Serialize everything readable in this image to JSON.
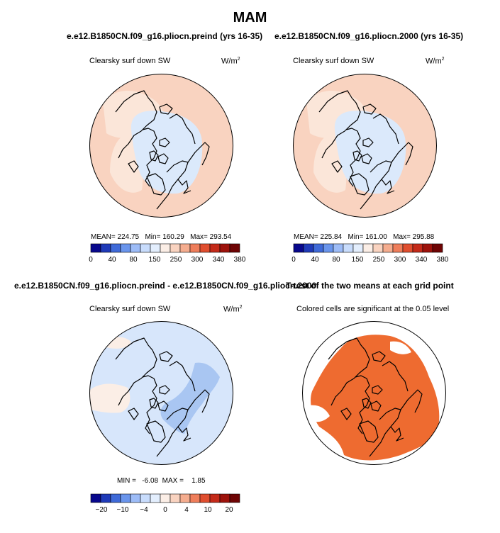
{
  "figure_title": "MAM",
  "chart_data": [
    {
      "type": "heatmap",
      "projection": "north-polar-stereographic",
      "run_title": "e.e12.B1850CN.f09_g16.pliocn.preind (yrs 16-35)",
      "left_label": "Clearsky surf down SW",
      "units_base": "W/m",
      "units_exp": "2",
      "stats": {
        "mean_label": "MEAN=",
        "mean": "224.75",
        "min_label": "Min=",
        "min": "160.29",
        "max_label": "Max=",
        "max": "293.54"
      },
      "colorbar": {
        "levels": [
          0,
          20,
          40,
          60,
          80,
          100,
          150,
          200,
          250,
          275,
          300,
          320,
          340,
          360,
          380
        ],
        "tick_labels": [
          "0",
          "40",
          "80",
          "150",
          "250",
          "300",
          "340",
          "380"
        ],
        "colors": [
          "#08088c",
          "#1f3ab8",
          "#3f6ad8",
          "#6a95ec",
          "#9dbcf7",
          "#c8dcfc",
          "#e3eefd",
          "#fbeee6",
          "#f9d3c0",
          "#f5ad8f",
          "#ef7e5b",
          "#e04e2f",
          "#c42a19",
          "#9d120b",
          "#6e0404"
        ]
      },
      "regions": [
        {
          "name": "central-arctic",
          "value_range": [
            150,
            250
          ],
          "color": "#dbe9fb"
        },
        {
          "name": "high-latitude-land",
          "value_range": [
            250,
            275
          ],
          "color": "#fbe6d9"
        },
        {
          "name": "mid-latitude-ring",
          "value_range": [
            275,
            300
          ],
          "color": "#f9d3c0"
        }
      ]
    },
    {
      "type": "heatmap",
      "projection": "north-polar-stereographic",
      "run_title": "e.e12.B1850CN.f09_g16.pliocn.2000 (yrs 16-35)",
      "left_label": "Clearsky surf down SW",
      "units_base": "W/m",
      "units_exp": "2",
      "stats": {
        "mean_label": "MEAN=",
        "mean": "225.84",
        "min_label": "Min=",
        "min": "161.00",
        "max_label": "Max=",
        "max": "295.88"
      },
      "colorbar": {
        "levels": [
          0,
          20,
          40,
          60,
          80,
          100,
          150,
          200,
          250,
          275,
          300,
          320,
          340,
          360,
          380
        ],
        "tick_labels": [
          "0",
          "40",
          "80",
          "150",
          "250",
          "300",
          "340",
          "380"
        ],
        "colors": [
          "#08088c",
          "#1f3ab8",
          "#3f6ad8",
          "#6a95ec",
          "#9dbcf7",
          "#c8dcfc",
          "#e3eefd",
          "#fbeee6",
          "#f9d3c0",
          "#f5ad8f",
          "#ef7e5b",
          "#e04e2f",
          "#c42a19",
          "#9d120b",
          "#6e0404"
        ]
      },
      "regions": [
        {
          "name": "central-arctic",
          "value_range": [
            150,
            250
          ],
          "color": "#dbe9fb"
        },
        {
          "name": "high-latitude-land",
          "value_range": [
            250,
            275
          ],
          "color": "#fbe6d9"
        },
        {
          "name": "mid-latitude-ring",
          "value_range": [
            275,
            300
          ],
          "color": "#f9d3c0"
        }
      ]
    },
    {
      "type": "heatmap",
      "projection": "north-polar-stereographic",
      "run_title": "e.e12.B1850CN.f09_g16.pliocn.preind - e.e12.B1850CN.f09_g16.pliocn.2000",
      "left_label": "Clearsky surf down SW",
      "units_base": "W/m",
      "units_exp": "2",
      "stats": {
        "min_label": "MIN =",
        "min": "-6.08",
        "max_label": "MAX =",
        "max": "1.85"
      },
      "colorbar": {
        "levels": [
          -30,
          -20,
          -15,
          -10,
          -6,
          -4,
          -2,
          0,
          2,
          4,
          6,
          10,
          15,
          20,
          30
        ],
        "tick_labels": [
          "−20",
          "−10",
          "−4",
          "0",
          "4",
          "10",
          "20"
        ],
        "colors": [
          "#08088c",
          "#1f3ab8",
          "#3f6ad8",
          "#6a95ec",
          "#9dbcf7",
          "#c8dcfc",
          "#e3eefd",
          "#fbeee6",
          "#f9d3c0",
          "#f5ad8f",
          "#ef7e5b",
          "#e04e2f",
          "#c42a19",
          "#9d120b",
          "#6e0404"
        ]
      },
      "regions": [
        {
          "name": "background",
          "value_range": [
            -2,
            0
          ],
          "color": "#d7e6fb"
        },
        {
          "name": "nw-atlantic-positive",
          "value_range": [
            0,
            2
          ],
          "color": "#fbeee6"
        },
        {
          "name": "nordic-barents-negative",
          "value_range": [
            -4,
            -2
          ],
          "color": "#a9c6f2"
        }
      ]
    },
    {
      "type": "heatmap",
      "projection": "north-polar-stereographic",
      "run_title": "T-test of the two means at each grid point",
      "right_label": "Colored cells are significant at the 0.05 level",
      "regions": [
        {
          "name": "significant-cells",
          "color": "#ee6b30"
        }
      ]
    }
  ]
}
